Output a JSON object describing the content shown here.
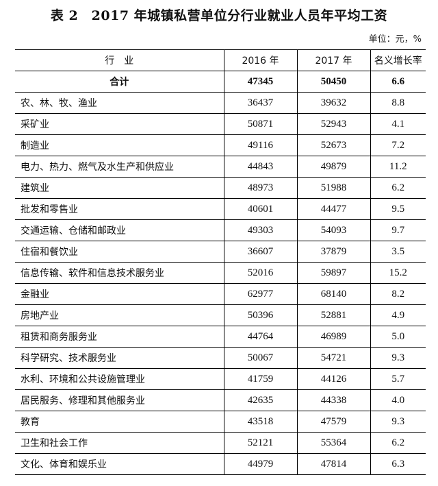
{
  "title": "表 2　2017 年城镇私营单位分行业就业人员年平均工资",
  "unit": "单位：元，%",
  "headers": [
    "行　业",
    "2016 年",
    "2017 年",
    "名义增长率"
  ],
  "total": {
    "name": "合计",
    "y2016": "47345",
    "y2017": "50450",
    "growth": "6.6"
  },
  "rows": [
    {
      "name": "农、林、牧、渔业",
      "y2016": "36437",
      "y2017": "39632",
      "growth": "8.8"
    },
    {
      "name": "采矿业",
      "y2016": "50871",
      "y2017": "52943",
      "growth": "4.1"
    },
    {
      "name": "制造业",
      "y2016": "49116",
      "y2017": "52673",
      "growth": "7.2"
    },
    {
      "name": "电力、热力、燃气及水生产和供应业",
      "y2016": "44843",
      "y2017": "49879",
      "growth": "11.2"
    },
    {
      "name": "建筑业",
      "y2016": "48973",
      "y2017": "51988",
      "growth": "6.2"
    },
    {
      "name": "批发和零售业",
      "y2016": "40601",
      "y2017": "44477",
      "growth": "9.5"
    },
    {
      "name": "交通运输、仓储和邮政业",
      "y2016": "49303",
      "y2017": "54093",
      "growth": "9.7"
    },
    {
      "name": "住宿和餐饮业",
      "y2016": "36607",
      "y2017": "37879",
      "growth": "3.5"
    },
    {
      "name": "信息传输、软件和信息技术服务业",
      "y2016": "52016",
      "y2017": "59897",
      "growth": "15.2"
    },
    {
      "name": "金融业",
      "y2016": "62977",
      "y2017": "68140",
      "growth": "8.2"
    },
    {
      "name": "房地产业",
      "y2016": "50396",
      "y2017": "52881",
      "growth": "4.9"
    },
    {
      "name": "租赁和商务服务业",
      "y2016": "44764",
      "y2017": "46989",
      "growth": "5.0"
    },
    {
      "name": "科学研究、技术服务业",
      "y2016": "50067",
      "y2017": "54721",
      "growth": "9.3"
    },
    {
      "name": "水利、环境和公共设施管理业",
      "y2016": "41759",
      "y2017": "44126",
      "growth": "5.7"
    },
    {
      "name": "居民服务、修理和其他服务业",
      "y2016": "42635",
      "y2017": "44338",
      "growth": "4.0"
    },
    {
      "name": "教育",
      "y2016": "43518",
      "y2017": "47579",
      "growth": "9.3"
    },
    {
      "name": "卫生和社会工作",
      "y2016": "52121",
      "y2017": "55364",
      "growth": "6.2"
    },
    {
      "name": "文化、体育和娱乐业",
      "y2016": "44979",
      "y2017": "47814",
      "growth": "6.3"
    }
  ]
}
